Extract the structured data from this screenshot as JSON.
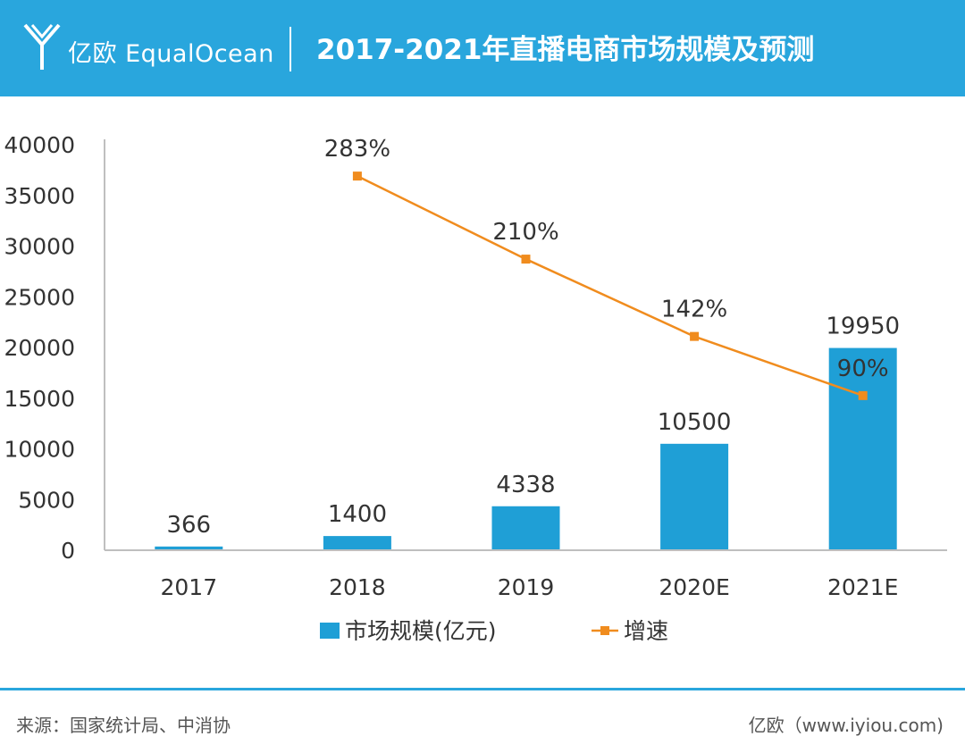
{
  "header": {
    "logo_text": "亿欧 EqualOcean",
    "title": "2017-2021年直播电商市场规模及预测"
  },
  "colors": {
    "header_bg": "#29a6dd",
    "bar": "#1f9fd6",
    "line": "#f08c1e",
    "text": "#333333",
    "axis": "#bfbfbf"
  },
  "chart_data": {
    "type": "bar",
    "categories": [
      "2017",
      "2018",
      "2019",
      "2020E",
      "2021E"
    ],
    "series": [
      {
        "name": "市场规模(亿元)",
        "type": "bar",
        "values": [
          366,
          1400,
          4338,
          10500,
          19950
        ]
      },
      {
        "name": "增速",
        "type": "line",
        "values": [
          null,
          283,
          210,
          142,
          90
        ],
        "labels": [
          "",
          "283%",
          "210%",
          "142%",
          "90%"
        ]
      }
    ],
    "y_ticks": [
      0,
      5000,
      10000,
      15000,
      20000,
      25000,
      30000,
      35000,
      40000
    ],
    "ylim": [
      0,
      40000
    ],
    "grid": false,
    "legend_position": "bottom"
  },
  "footer": {
    "source": "来源：国家统计局、中消协",
    "credit": "亿欧（www.iyiou.com)"
  }
}
